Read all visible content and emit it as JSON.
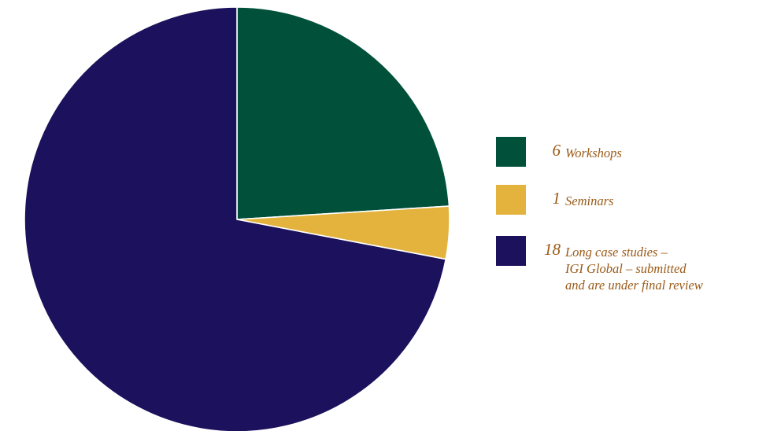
{
  "chart_data": {
    "type": "pie",
    "title": "",
    "start_angle": "12 o'clock",
    "direction": "clockwise",
    "legend_position": "right",
    "slices": [
      {
        "label": "Workshops",
        "value": 6,
        "color": "#00503a",
        "legend_lines": [
          "Workshops"
        ]
      },
      {
        "label": "Seminars",
        "value": 1,
        "color": "#e3b33e",
        "legend_lines": [
          "Seminars"
        ]
      },
      {
        "label": "Long case studies – IGI Global – submitted and are under final review",
        "value": 18,
        "color": "#1c115c",
        "legend_lines": [
          "Long case studies –",
          "IGI Global – submitted",
          "and are under final review"
        ]
      }
    ]
  },
  "legend": {
    "items": [
      {
        "number": "6",
        "lines": [
          "Workshops"
        ]
      },
      {
        "number": "1",
        "lines": [
          "Seminars"
        ]
      },
      {
        "number": "18",
        "lines": [
          "Long case studies –",
          "IGI Global – submitted",
          "and are under final review"
        ]
      }
    ]
  }
}
